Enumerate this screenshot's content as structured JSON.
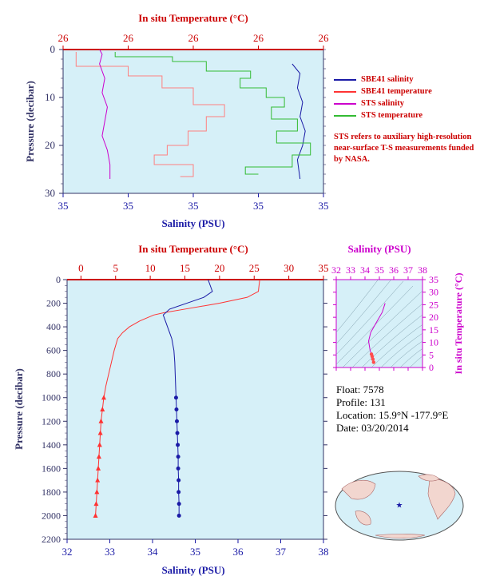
{
  "chart_data": [
    {
      "type": "line",
      "panel": "top",
      "title": "In situ Temperature (°C)",
      "xlabel": "Salinity (PSU)",
      "ylabel": "Pressure (decibar)",
      "x_ticks_bottom": [
        "35",
        "35",
        "35",
        "35",
        "35"
      ],
      "x_ticks_top": [
        "26",
        "26",
        "26",
        "26",
        "26"
      ],
      "y_ticks": [
        "0",
        "10",
        "20",
        "30"
      ],
      "ylim": [
        30,
        0
      ],
      "series": [
        {
          "name": "SBE41 salinity",
          "color": "#1a1aa6",
          "pressure": [
            3,
            5,
            8,
            11,
            14,
            17,
            20,
            23,
            27
          ],
          "value": [
            0.88,
            0.91,
            0.9,
            0.92,
            0.91,
            0.93,
            0.92,
            0.9,
            0.91
          ]
        },
        {
          "name": "SBE41 temperature",
          "color": "#ff8080",
          "pressure": [
            0.5,
            3.5,
            5.5,
            8,
            11.5,
            14,
            17,
            20,
            22,
            24,
            26.5
          ],
          "value": [
            0.05,
            0.25,
            0.38,
            0.5,
            0.62,
            0.55,
            0.48,
            0.4,
            0.35,
            0.5,
            0.45
          ]
        },
        {
          "name": "STS salinity",
          "color": "#cc00cc",
          "pressure": [
            0,
            1,
            3,
            6,
            9,
            12,
            15,
            18,
            21,
            24,
            27
          ],
          "value": [
            0.14,
            0.15,
            0.14,
            0.16,
            0.15,
            0.17,
            0.16,
            0.15,
            0.17,
            0.18,
            0.18
          ]
        },
        {
          "name": "STS temperature",
          "color": "#33bb33",
          "pressure": [
            0.5,
            1.5,
            2.5,
            4.5,
            6,
            8,
            10,
            12,
            14.5,
            17,
            19.5,
            22,
            24.5,
            26
          ],
          "value": [
            0.2,
            0.42,
            0.55,
            0.72,
            0.68,
            0.78,
            0.85,
            0.8,
            0.9,
            0.82,
            0.95,
            0.88,
            0.7,
            0.75
          ]
        }
      ]
    },
    {
      "type": "line",
      "panel": "main",
      "title": "In situ Temperature (°C)",
      "xlabel": "Salinity (PSU)",
      "ylabel": "Pressure (decibar)",
      "temperature_ticks": [
        0,
        5,
        10,
        15,
        20,
        25,
        30,
        35
      ],
      "salinity_ticks": [
        32,
        33,
        34,
        35,
        36,
        37,
        38
      ],
      "pressure_ticks": [
        0,
        200,
        400,
        600,
        800,
        1000,
        1200,
        1400,
        1600,
        1800,
        2000,
        2200
      ],
      "xlim_temperature": [
        -2,
        35
      ],
      "xlim_salinity": [
        32,
        38
      ],
      "ylim": [
        2200,
        0
      ],
      "series": [
        {
          "name": "temperature",
          "color": "#ff3333",
          "pressure": [
            0,
            50,
            100,
            150,
            200,
            250,
            280,
            300,
            350,
            400,
            450,
            500,
            600,
            700,
            800,
            900,
            1000,
            1100,
            1200,
            1300,
            1400,
            1500,
            1600,
            1700,
            1800,
            1900,
            2000
          ],
          "values": [
            25.8,
            25.7,
            25.6,
            24.0,
            20.0,
            15.0,
            12.0,
            10.5,
            8.5,
            7.0,
            6.0,
            5.3,
            4.8,
            4.4,
            4.0,
            3.6,
            3.3,
            3.1,
            2.9,
            2.8,
            2.7,
            2.6,
            2.5,
            2.4,
            2.3,
            2.2,
            2.1
          ]
        },
        {
          "name": "salinity",
          "color": "#1a1aa6",
          "pressure": [
            0,
            50,
            100,
            150,
            200,
            250,
            300,
            350,
            400,
            450,
            500,
            600,
            700,
            800,
            900,
            1000,
            1100,
            1200,
            1300,
            1400,
            1500,
            1600,
            1700,
            1800,
            1900,
            2000
          ],
          "values": [
            35.3,
            35.35,
            35.4,
            35.2,
            34.8,
            34.4,
            34.25,
            34.3,
            34.35,
            34.4,
            34.45,
            34.5,
            34.52,
            34.53,
            34.54,
            34.55,
            34.56,
            34.57,
            34.58,
            34.59,
            34.6,
            34.6,
            34.61,
            34.61,
            34.62,
            34.62
          ]
        }
      ]
    },
    {
      "type": "line",
      "panel": "ts-diagram",
      "title": "Salinity (PSU)",
      "ylabel": "In situ Temperature (°C)",
      "x_ticks": [
        32,
        33,
        34,
        35,
        36,
        37,
        38
      ],
      "y_ticks": [
        0,
        5,
        10,
        15,
        20,
        25,
        30,
        35
      ],
      "series": [
        {
          "name": "T-S",
          "color": "#ff4d4d",
          "salinity": [
            34.6,
            34.55,
            34.5,
            34.45,
            34.35,
            34.25,
            34.4,
            34.8,
            35.2,
            35.4
          ],
          "temperature": [
            2.1,
            3.3,
            4.4,
            5.3,
            7.0,
            10.5,
            14,
            18,
            22,
            25.6
          ]
        }
      ]
    }
  ],
  "labels": {
    "top_title": "In situ Temperature (°C)",
    "top_xlabel": "Salinity (PSU)",
    "top_ylabel": "Pressure (decibar)",
    "main_title": "In situ Temperature (°C)",
    "main_xlabel": "Salinity (PSU)",
    "main_ylabel": "Pressure (decibar)",
    "ts_title": "Salinity (PSU)",
    "ts_ylabel": "In situ Temperature (°C)"
  },
  "legend": [
    {
      "label": "SBE41 salinity",
      "color": "#1a1aa6"
    },
    {
      "label": "SBE41 temperature",
      "color": "#ff3333"
    },
    {
      "label": "STS salinity",
      "color": "#cc00cc"
    },
    {
      "label": "STS temperature",
      "color": "#33bb33"
    }
  ],
  "note": "STS refers to auxiliary high-resolution near-surface T-S measurements funded by NASA.",
  "float_info": {
    "float": "Float:  7578",
    "profile": "Profile:  131",
    "location": "Location:  15.9°N  -177.9°E",
    "date": "Date:  03/20/2014"
  },
  "colors": {
    "plot_bg": "#d6f0f8",
    "temp_axis": "#cc0000",
    "sal_axis": "#1a1aa6",
    "pres_axis": "#333366",
    "ts_axis": "#cc00cc"
  }
}
